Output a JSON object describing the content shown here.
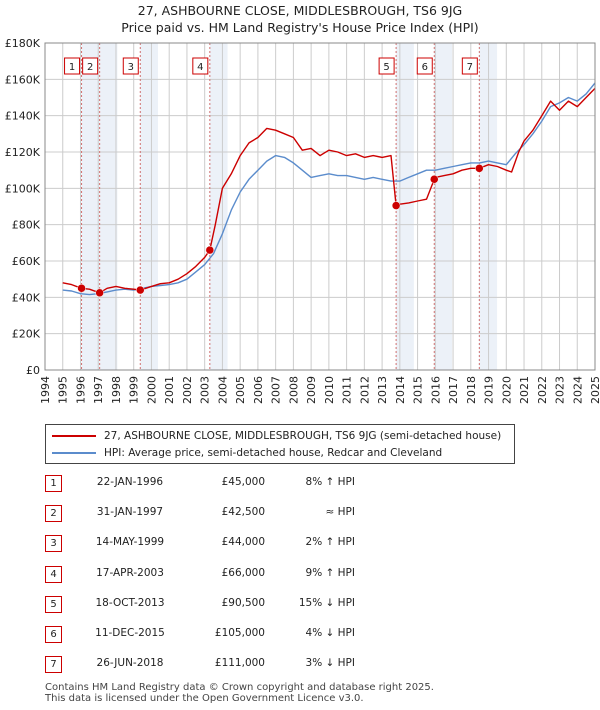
{
  "title": {
    "line1": "27, ASHBOURNE CLOSE, MIDDLESBROUGH, TS6 9JG",
    "line2": "Price paid vs. HM Land Registry's House Price Index (HPI)"
  },
  "colors": {
    "property_line": "#cc0000",
    "hpi_line": "#5b8ccc",
    "marker_fill": "#cc0000",
    "shade": "#dde6f3",
    "grid": "#cccccc",
    "vline": "#d07070"
  },
  "chart_data": {
    "type": "line",
    "title": "27, ASHBOURNE CLOSE, MIDDLESBROUGH, TS6 9JG — Price paid vs. HM Land Registry's House Price Index (HPI)",
    "xlabel": "",
    "ylabel": "",
    "xlim": [
      1994,
      2025
    ],
    "ylim": [
      0,
      180000
    ],
    "grid": true,
    "y_ticks": [
      0,
      20000,
      40000,
      60000,
      80000,
      100000,
      120000,
      140000,
      160000,
      180000
    ],
    "y_tick_labels": [
      "£0",
      "£20K",
      "£40K",
      "£60K",
      "£80K",
      "£100K",
      "£120K",
      "£140K",
      "£160K",
      "£180K"
    ],
    "x_ticks": [
      1994,
      1995,
      1996,
      1997,
      1998,
      1999,
      2000,
      2001,
      2002,
      2003,
      2004,
      2005,
      2006,
      2007,
      2008,
      2009,
      2010,
      2011,
      2012,
      2013,
      2014,
      2015,
      2016,
      2017,
      2018,
      2019,
      2020,
      2021,
      2022,
      2023,
      2024,
      2025
    ],
    "x_tick_labels": [
      "1994",
      "1995",
      "1996",
      "1997",
      "1998",
      "1999",
      "2000",
      "2001",
      "2002",
      "2003",
      "2004",
      "2005",
      "2006",
      "2007",
      "2008",
      "2009",
      "2010",
      "2011",
      "2012",
      "2013",
      "2014",
      "2015",
      "2016",
      "2017",
      "2018",
      "2019",
      "2020",
      "2021",
      "2022",
      "2023",
      "2024",
      "2025"
    ],
    "series": [
      {
        "name": "27, ASHBOURNE CLOSE, MIDDLESBROUGH, TS6 9JG (semi-detached house)",
        "color": "#cc0000",
        "x": [
          1995.0,
          1995.5,
          1996.06,
          1996.5,
          1997.08,
          1997.5,
          1998.0,
          1998.5,
          1999.0,
          1999.37,
          2000.0,
          2000.5,
          2001.0,
          2001.5,
          2002.0,
          2002.5,
          2003.0,
          2003.29,
          2003.6,
          2004.0,
          2004.5,
          2005.0,
          2005.5,
          2006.0,
          2006.5,
          2007.0,
          2007.5,
          2008.0,
          2008.5,
          2009.0,
          2009.5,
          2010.0,
          2010.5,
          2011.0,
          2011.5,
          2012.0,
          2012.5,
          2013.0,
          2013.5,
          2013.79,
          2013.8,
          2014.5,
          2015.0,
          2015.5,
          2015.94,
          2016.0,
          2016.5,
          2017.0,
          2017.5,
          2018.0,
          2018.48,
          2019.0,
          2019.5,
          2020.0,
          2020.3,
          2020.7,
          2021.0,
          2021.5,
          2022.0,
          2022.5,
          2023.0,
          2023.5,
          2024.0,
          2024.5,
          2025.0
        ],
        "values": [
          48000,
          47000,
          45000,
          44500,
          42500,
          45000,
          46000,
          45000,
          44500,
          44000,
          46000,
          47500,
          48000,
          50000,
          53000,
          57000,
          62000,
          66000,
          80000,
          100000,
          108000,
          118000,
          125000,
          128000,
          133000,
          132000,
          130000,
          128000,
          121000,
          122000,
          118000,
          121000,
          120000,
          118000,
          119000,
          117000,
          118000,
          117000,
          118000,
          90500,
          91000,
          92000,
          93000,
          94000,
          105000,
          106000,
          107000,
          108000,
          110000,
          111000,
          111000,
          113000,
          112000,
          110000,
          109000,
          120000,
          126000,
          132000,
          140000,
          148000,
          143000,
          148000,
          145000,
          150000,
          155000
        ]
      },
      {
        "name": "HPI: Average price, semi-detached house, Redcar and Cleveland",
        "color": "#5b8ccc",
        "x": [
          1995.0,
          1995.5,
          1996.0,
          1996.5,
          1997.0,
          1997.5,
          1998.0,
          1998.5,
          1999.0,
          1999.5,
          2000.0,
          2000.5,
          2001.0,
          2001.5,
          2002.0,
          2002.5,
          2003.0,
          2003.5,
          2004.0,
          2004.5,
          2005.0,
          2005.5,
          2006.0,
          2006.5,
          2007.0,
          2007.5,
          2008.0,
          2008.5,
          2009.0,
          2009.5,
          2010.0,
          2010.5,
          2011.0,
          2011.5,
          2012.0,
          2012.5,
          2013.0,
          2013.5,
          2014.0,
          2014.5,
          2015.0,
          2015.5,
          2016.0,
          2016.5,
          2017.0,
          2017.5,
          2018.0,
          2018.5,
          2019.0,
          2019.5,
          2020.0,
          2020.5,
          2021.0,
          2021.5,
          2022.0,
          2022.5,
          2023.0,
          2023.5,
          2024.0,
          2024.5,
          2025.0
        ],
        "values": [
          44000,
          43500,
          42000,
          41500,
          42000,
          43000,
          44000,
          44500,
          44000,
          45000,
          46000,
          46500,
          47000,
          48000,
          50000,
          54000,
          58000,
          64000,
          75000,
          88000,
          98000,
          105000,
          110000,
          115000,
          118000,
          117000,
          114000,
          110000,
          106000,
          107000,
          108000,
          107000,
          107000,
          106000,
          105000,
          106000,
          105000,
          104000,
          104000,
          106000,
          108000,
          110000,
          110000,
          111000,
          112000,
          113000,
          114000,
          114000,
          115000,
          114000,
          113000,
          119000,
          124000,
          130000,
          137000,
          145000,
          147000,
          150000,
          148000,
          152000,
          158000
        ]
      }
    ],
    "sales": [
      {
        "n": "1",
        "x": 1996.06,
        "price": 45000
      },
      {
        "n": "2",
        "x": 1997.08,
        "price": 42500
      },
      {
        "n": "3",
        "x": 1999.37,
        "price": 44000
      },
      {
        "n": "4",
        "x": 2003.29,
        "price": 66000
      },
      {
        "n": "5",
        "x": 2013.79,
        "price": 90500
      },
      {
        "n": "6",
        "x": 2015.94,
        "price": 105000
      },
      {
        "n": "7",
        "x": 2018.48,
        "price": 111000
      }
    ]
  },
  "legend": {
    "property_label": "27, ASHBOURNE CLOSE, MIDDLESBROUGH, TS6 9JG (semi-detached house)",
    "hpi_label": "HPI: Average price, semi-detached house, Redcar and Cleveland"
  },
  "sales_table": [
    {
      "num": "1",
      "date": "22-JAN-1996",
      "price": "£45,000",
      "hpi": "8% ↑ HPI"
    },
    {
      "num": "2",
      "date": "31-JAN-1997",
      "price": "£42,500",
      "hpi": "≈ HPI"
    },
    {
      "num": "3",
      "date": "14-MAY-1999",
      "price": "£44,000",
      "hpi": "2% ↑ HPI"
    },
    {
      "num": "4",
      "date": "17-APR-2003",
      "price": "£66,000",
      "hpi": "9% ↑ HPI"
    },
    {
      "num": "5",
      "date": "18-OCT-2013",
      "price": "£90,500",
      "hpi": "15% ↓ HPI"
    },
    {
      "num": "6",
      "date": "11-DEC-2015",
      "price": "£105,000",
      "hpi": "4% ↓ HPI"
    },
    {
      "num": "7",
      "date": "26-JUN-2018",
      "price": "£111,000",
      "hpi": "3% ↓ HPI"
    }
  ],
  "footer": {
    "line1": "Contains HM Land Registry data © Crown copyright and database right 2025.",
    "line2": "This data is licensed under the Open Government Licence v3.0."
  }
}
